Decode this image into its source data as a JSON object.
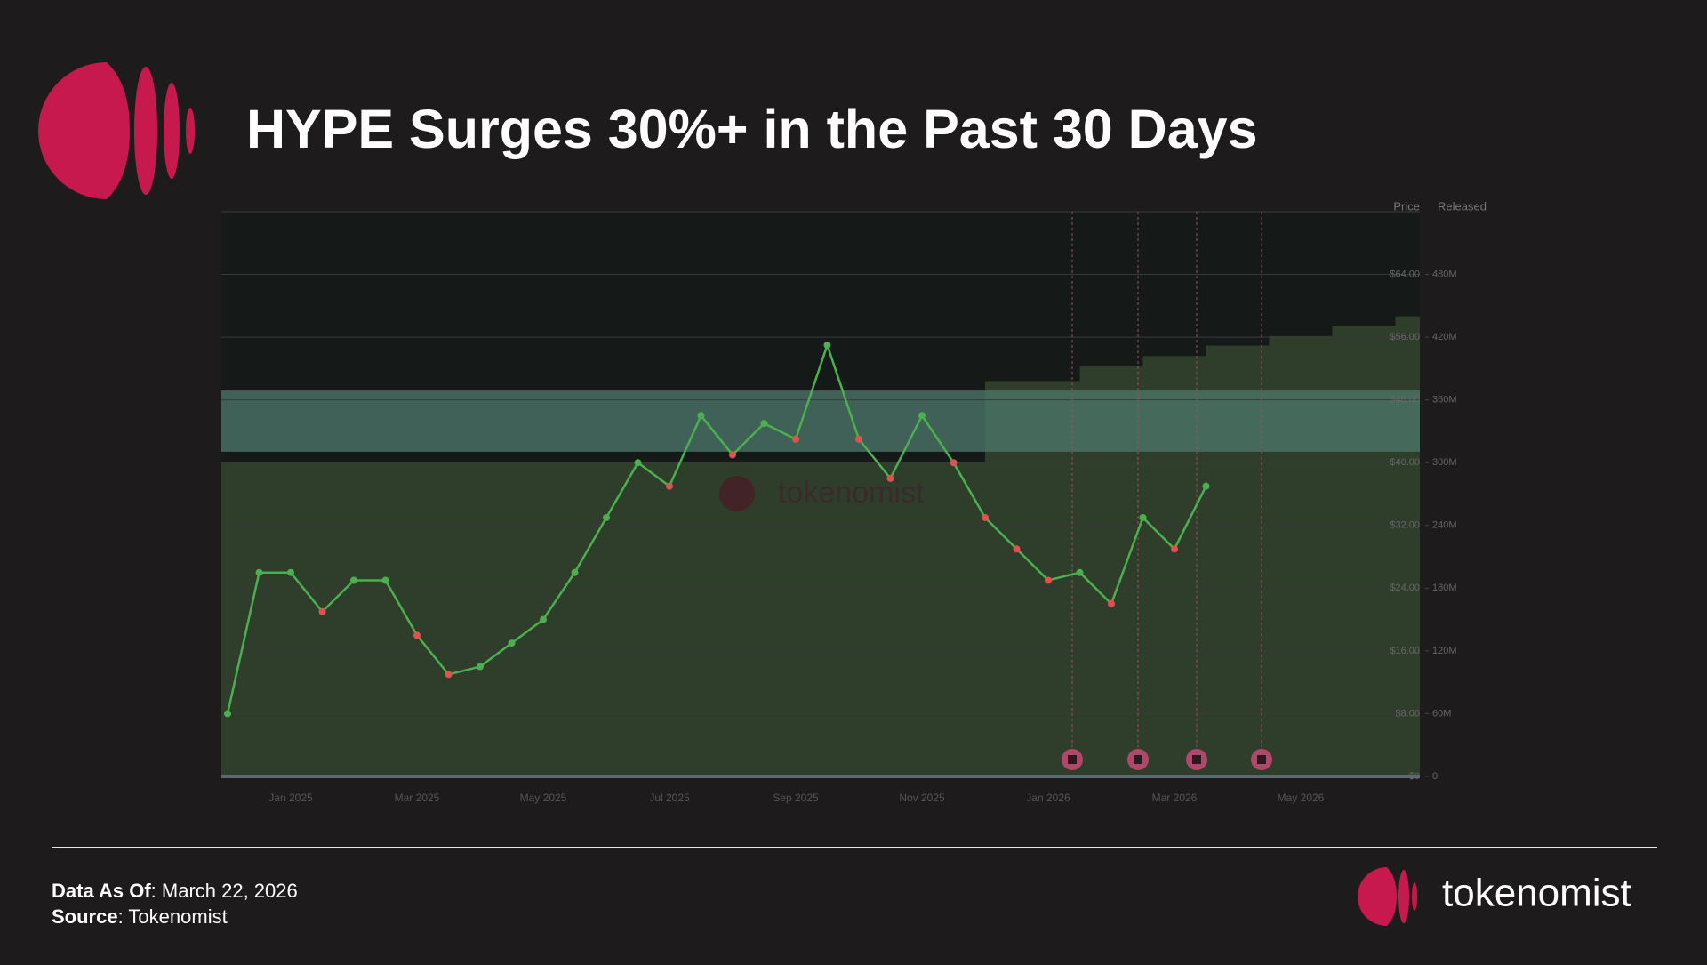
{
  "chart_data": {
    "type": "line",
    "title": "HYPE Surges 30%+ in the Past 30 Days",
    "watermark": "tokenomist",
    "categories": [
      null,
      null,
      "Jan 2025",
      null,
      null,
      null,
      "Mar 2025",
      null,
      null,
      null,
      "May 2025",
      null,
      null,
      null,
      "Jul 2025",
      null,
      null,
      null,
      "Sep 2025",
      null,
      null,
      null,
      "Nov 2025",
      null,
      null,
      null,
      "Jan 2026",
      null,
      null,
      null,
      "Mar 2026",
      null,
      null,
      null,
      "May 2026",
      null,
      null,
      null
    ],
    "series": [
      {
        "name": "Price",
        "color": "#4caf50",
        "down_color": "#e0524f",
        "values": [
          8,
          26,
          26,
          21,
          25,
          25,
          18,
          13,
          14,
          17,
          20,
          26,
          33,
          40,
          37,
          46,
          41,
          45,
          43,
          55,
          43,
          38,
          46,
          40,
          33,
          29,
          25,
          26,
          22,
          33,
          29,
          37,
          null,
          null,
          null,
          null,
          null,
          null
        ]
      },
      {
        "name": "Released",
        "axis": "y2",
        "color": "#2f3d2b",
        "values": [
          300000000,
          300000000,
          300000000,
          300000000,
          300000000,
          300000000,
          300000000,
          300000000,
          300000000,
          300000000,
          300000000,
          300000000,
          300000000,
          300000000,
          300000000,
          300000000,
          300000000,
          300000000,
          300000000,
          300000000,
          300000000,
          300000000,
          300000000,
          300000000,
          378000000,
          378000000,
          378000000,
          392000000,
          392000000,
          402000000,
          402000000,
          412000000,
          412000000,
          421000000,
          421000000,
          431000000,
          431000000,
          440000000
        ]
      }
    ],
    "ylim": [
      0,
      72
    ],
    "yticks": [
      {
        "value": 0,
        "label": "$0"
      },
      {
        "value": 8,
        "label": "$8.00"
      },
      {
        "value": 16,
        "label": "$16.00"
      },
      {
        "value": 24,
        "label": "$24.00"
      },
      {
        "value": 32,
        "label": "$32.00"
      },
      {
        "value": 40,
        "label": "$40.00"
      },
      {
        "value": 48,
        "label": "$48.00"
      },
      {
        "value": 56,
        "label": "$56.00"
      },
      {
        "value": 64,
        "label": "$64.00"
      }
    ],
    "y2lim": [
      0,
      540000000
    ],
    "y2ticks": [
      0,
      {
        "value": 60000000,
        "label": "60M"
      },
      {
        "value": 120000000,
        "label": "120M"
      },
      {
        "value": 180000000,
        "label": "180M"
      },
      {
        "value": 240000000,
        "label": "240M"
      },
      {
        "value": 300000000,
        "label": "300M"
      },
      {
        "value": 360000000,
        "label": "360M"
      },
      {
        "value": 420000000,
        "label": "420M"
      },
      {
        "value": 480000000,
        "label": "480M"
      }
    ],
    "highlight_band": [
      41.4,
      49.2
    ],
    "highlight_color": "#4d7a6c",
    "grid": true
  },
  "footer": {
    "as_of_label": "Data As Of",
    "as_of": ": March 22, 2026",
    "source_label": "Source",
    "source": ": Tokenomist",
    "brand": "tokenomist"
  }
}
